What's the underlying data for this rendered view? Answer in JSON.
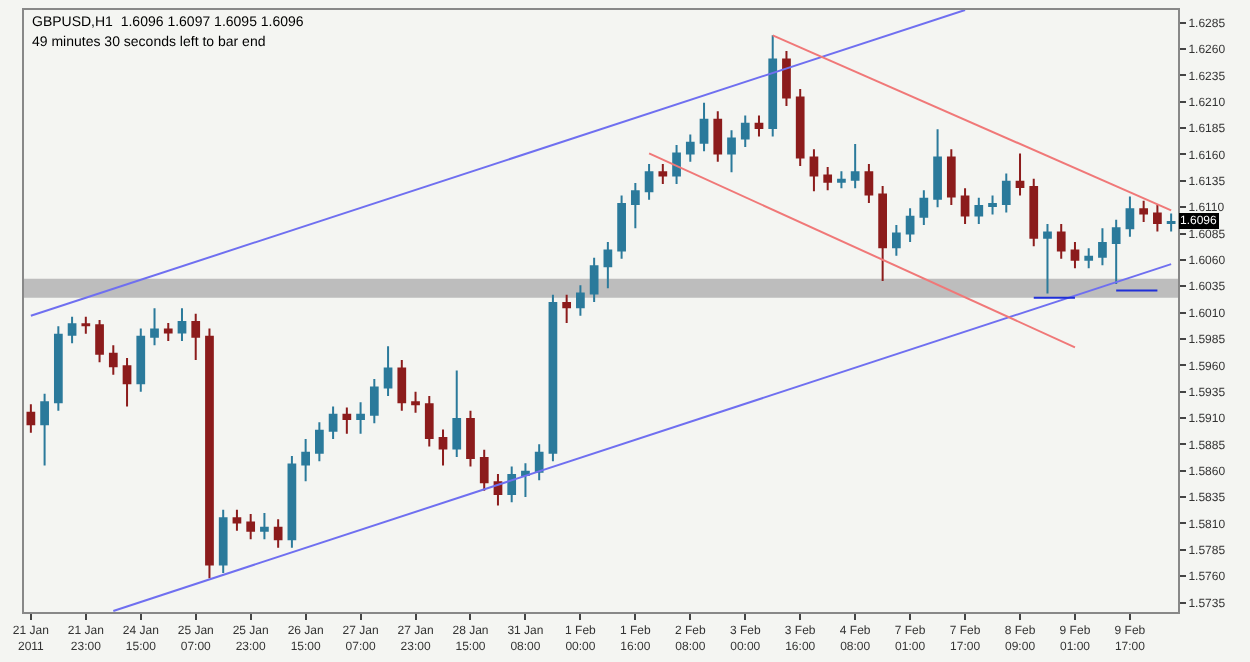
{
  "chart_data": {
    "type": "candlestick",
    "title": "GBPUSD,H1  1.6096 1.6097 1.6095 1.6096",
    "subtitle": "49 minutes 30 seconds left to bar end",
    "categories": [
      "21 Jan 2011",
      null,
      null,
      null,
      "21 Jan 23:00",
      null,
      null,
      null,
      "24 Jan 15:00",
      null,
      null,
      null,
      "25 Jan 07:00",
      null,
      null,
      null,
      "25 Jan 23:00",
      null,
      null,
      null,
      "26 Jan 15:00",
      null,
      null,
      null,
      "27 Jan 07:00",
      null,
      null,
      null,
      "27 Jan 23:00",
      null,
      null,
      null,
      "28 Jan 15:00",
      null,
      null,
      null,
      "31 Jan 08:00",
      null,
      null,
      null,
      "1 Feb 00:00",
      null,
      null,
      null,
      "1 Feb 16:00",
      null,
      null,
      null,
      "2 Feb 08:00",
      null,
      null,
      null,
      "3 Feb 00:00",
      null,
      null,
      null,
      "3 Feb 16:00",
      null,
      null,
      null,
      "4 Feb 08:00",
      null,
      null,
      null,
      "7 Feb 01:00",
      null,
      null,
      null,
      "7 Feb 17:00",
      null,
      null,
      null,
      "8 Feb 09:00",
      null,
      null,
      null,
      "9 Feb 01:00",
      null,
      null,
      null,
      "9 Feb 17:00",
      null,
      null,
      null
    ],
    "ohlc": [
      [
        1.5915,
        1.5923,
        1.5896,
        1.5904
      ],
      [
        1.5904,
        1.5933,
        1.5865,
        1.5925
      ],
      [
        1.5925,
        1.5997,
        1.5917,
        1.5989
      ],
      [
        1.5989,
        1.6006,
        1.5981,
        1.5999
      ],
      [
        1.5999,
        1.6006,
        1.599,
        1.5998
      ],
      [
        1.5998,
        1.6003,
        1.5963,
        1.5971
      ],
      [
        1.5971,
        1.5979,
        1.5951,
        1.5959
      ],
      [
        1.5959,
        1.5967,
        1.5921,
        1.5943
      ],
      [
        1.5943,
        1.5995,
        1.5935,
        1.5987
      ],
      [
        1.5987,
        1.6014,
        1.5979,
        1.5994
      ],
      [
        1.5994,
        1.6,
        1.5983,
        1.5991
      ],
      [
        1.5991,
        1.6014,
        1.5983,
        1.6001
      ],
      [
        1.6001,
        1.6009,
        1.5965,
        1.5987
      ],
      [
        1.5987,
        1.5995,
        1.5758,
        1.5771
      ],
      [
        1.5771,
        1.5823,
        1.5763,
        1.5815
      ],
      [
        1.5815,
        1.5823,
        1.5803,
        1.5811
      ],
      [
        1.5811,
        1.5819,
        1.5795,
        1.5803
      ],
      [
        1.5803,
        1.582,
        1.5795,
        1.5806
      ],
      [
        1.5806,
        1.5814,
        1.5787,
        1.5795
      ],
      [
        1.5795,
        1.5874,
        1.5787,
        1.5866
      ],
      [
        1.5866,
        1.589,
        1.585,
        1.5877
      ],
      [
        1.5877,
        1.5906,
        1.5869,
        1.5898
      ],
      [
        1.5898,
        1.5921,
        1.589,
        1.5913
      ],
      [
        1.5913,
        1.592,
        1.5895,
        1.5909
      ],
      [
        1.5909,
        1.5925,
        1.5895,
        1.5913
      ],
      [
        1.5913,
        1.5947,
        1.5905,
        1.5939
      ],
      [
        1.5939,
        1.5978,
        1.5931,
        1.5957
      ],
      [
        1.5957,
        1.5965,
        1.5917,
        1.5925
      ],
      [
        1.5925,
        1.5935,
        1.5915,
        1.5923
      ],
      [
        1.5923,
        1.5931,
        1.5883,
        1.5891
      ],
      [
        1.5891,
        1.5899,
        1.5865,
        1.5881
      ],
      [
        1.5881,
        1.5955,
        1.5873,
        1.5909
      ],
      [
        1.5909,
        1.5917,
        1.5864,
        1.5872
      ],
      [
        1.5872,
        1.588,
        1.5841,
        1.5849
      ],
      [
        1.5849,
        1.5857,
        1.5827,
        1.5838
      ],
      [
        1.5838,
        1.5864,
        1.583,
        1.5856
      ],
      [
        1.5856,
        1.5867,
        1.5835,
        1.5859
      ],
      [
        1.5859,
        1.5885,
        1.5851,
        1.5877
      ],
      [
        1.5877,
        1.6027,
        1.5869,
        1.6019
      ],
      [
        1.6019,
        1.6027,
        1.6,
        1.6015
      ],
      [
        1.6015,
        1.6036,
        1.6007,
        1.6028
      ],
      [
        1.6028,
        1.6062,
        1.602,
        1.6054
      ],
      [
        1.6054,
        1.6077,
        1.6033,
        1.6069
      ],
      [
        1.6069,
        1.6121,
        1.6061,
        1.6113
      ],
      [
        1.6113,
        1.6133,
        1.609,
        1.6125
      ],
      [
        1.6125,
        1.6151,
        1.6117,
        1.6143
      ],
      [
        1.6143,
        1.6151,
        1.6132,
        1.614
      ],
      [
        1.614,
        1.6169,
        1.6132,
        1.6161
      ],
      [
        1.6161,
        1.6179,
        1.6153,
        1.6171
      ],
      [
        1.6171,
        1.6209,
        1.6163,
        1.6193
      ],
      [
        1.6193,
        1.6201,
        1.6153,
        1.6161
      ],
      [
        1.6161,
        1.6183,
        1.6143,
        1.6175
      ],
      [
        1.6175,
        1.6197,
        1.6167,
        1.6189
      ],
      [
        1.6189,
        1.6197,
        1.6177,
        1.6185
      ],
      [
        1.6185,
        1.6273,
        1.6177,
        1.625
      ],
      [
        1.625,
        1.6258,
        1.6206,
        1.6214
      ],
      [
        1.6214,
        1.6222,
        1.6149,
        1.6157
      ],
      [
        1.6157,
        1.6165,
        1.6125,
        1.614
      ],
      [
        1.614,
        1.6148,
        1.6126,
        1.6134
      ],
      [
        1.6134,
        1.6144,
        1.6128,
        1.6136
      ],
      [
        1.6136,
        1.617,
        1.6128,
        1.6143
      ],
      [
        1.6143,
        1.6151,
        1.6114,
        1.6122
      ],
      [
        1.6122,
        1.613,
        1.604,
        1.6072
      ],
      [
        1.6072,
        1.6093,
        1.6064,
        1.6085
      ],
      [
        1.6085,
        1.6109,
        1.6077,
        1.6101
      ],
      [
        1.6101,
        1.6126,
        1.6093,
        1.6118
      ],
      [
        1.6118,
        1.6184,
        1.611,
        1.6157
      ],
      [
        1.6157,
        1.6165,
        1.6112,
        1.612
      ],
      [
        1.612,
        1.6128,
        1.6094,
        1.6102
      ],
      [
        1.6102,
        1.6119,
        1.6094,
        1.6111
      ],
      [
        1.6111,
        1.6121,
        1.6103,
        1.6113
      ],
      [
        1.6113,
        1.6142,
        1.6105,
        1.6134
      ],
      [
        1.6134,
        1.6161,
        1.6121,
        1.6129
      ],
      [
        1.6129,
        1.6137,
        1.6073,
        1.6081
      ],
      [
        1.6081,
        1.6094,
        1.6028,
        1.6086
      ],
      [
        1.6086,
        1.6094,
        1.6061,
        1.6069
      ],
      [
        1.6069,
        1.6077,
        1.6052,
        1.606
      ],
      [
        1.606,
        1.6071,
        1.6052,
        1.6063
      ],
      [
        1.6063,
        1.609,
        1.6055,
        1.6076
      ],
      [
        1.6076,
        1.6098,
        1.6037,
        1.609
      ],
      [
        1.609,
        1.612,
        1.6082,
        1.6108
      ],
      [
        1.6108,
        1.6116,
        1.6096,
        1.6104
      ],
      [
        1.6104,
        1.6112,
        1.6087,
        1.6095
      ],
      [
        1.6095,
        1.6104,
        1.6087,
        1.6096
      ]
    ],
    "colors": [
      "#8c1c1c",
      "#2b7a9b",
      "#2b7a9b",
      "#2b7a9b",
      "#8c1c1c",
      "#8c1c1c",
      "#8c1c1c",
      "#8c1c1c",
      "#2b7a9b",
      "#2b7a9b",
      "#8c1c1c",
      "#2b7a9b",
      "#8c1c1c",
      "#8c1c1c",
      "#2b7a9b",
      "#8c1c1c",
      "#8c1c1c",
      "#2b7a9b",
      "#8c1c1c",
      "#2b7a9b",
      "#2b7a9b",
      "#2b7a9b",
      "#2b7a9b",
      "#8c1c1c",
      "#2b7a9b",
      "#2b7a9b",
      "#2b7a9b",
      "#8c1c1c",
      "#8c1c1c",
      "#8c1c1c",
      "#8c1c1c",
      "#2b7a9b",
      "#8c1c1c",
      "#8c1c1c",
      "#8c1c1c",
      "#2b7a9b",
      "#2b7a9b",
      "#2b7a9b",
      "#2b7a9b",
      "#8c1c1c",
      "#2b7a9b",
      "#2b7a9b",
      "#2b7a9b",
      "#2b7a9b",
      "#2b7a9b",
      "#2b7a9b",
      "#8c1c1c",
      "#2b7a9b",
      "#2b7a9b",
      "#2b7a9b",
      "#8c1c1c",
      "#2b7a9b",
      "#2b7a9b",
      "#8c1c1c",
      "#2b7a9b",
      "#8c1c1c",
      "#8c1c1c",
      "#8c1c1c",
      "#8c1c1c",
      "#2b7a9b",
      "#2b7a9b",
      "#8c1c1c",
      "#8c1c1c",
      "#2b7a9b",
      "#2b7a9b",
      "#2b7a9b",
      "#2b7a9b",
      "#8c1c1c",
      "#8c1c1c",
      "#2b7a9b",
      "#2b7a9b",
      "#2b7a9b",
      "#8c1c1c",
      "#8c1c1c",
      "#2b7a9b",
      "#8c1c1c",
      "#8c1c1c",
      "#2b7a9b",
      "#2b7a9b",
      "#2b7a9b",
      "#2b7a9b",
      "#8c1c1c",
      "#8c1c1c",
      "#2b7a9b"
    ],
    "series": [
      {
        "type": "line",
        "color": "#6f6ff0",
        "values": [
          1.6007,
          null,
          null,
          null,
          null,
          null,
          null,
          null,
          null,
          null,
          null,
          null,
          null,
          null,
          null,
          null,
          null,
          null,
          null,
          null,
          null,
          null,
          null,
          null,
          null,
          null,
          null,
          null,
          null,
          null,
          null,
          null,
          null,
          null,
          null,
          null,
          null,
          null,
          null,
          null,
          null,
          null,
          null,
          null,
          null,
          null,
          null,
          null,
          null,
          null,
          null,
          null,
          null,
          null,
          null,
          null,
          null,
          null,
          null,
          null,
          null,
          null,
          null,
          null,
          null,
          null,
          null,
          null,
          1.6297,
          null,
          null,
          null,
          null,
          null,
          null,
          null,
          null,
          null,
          null,
          null,
          null,
          null,
          null,
          null
        ]
      },
      {
        "type": "line",
        "color": "#6f6ff0",
        "values": [
          null,
          null,
          null,
          null,
          null,
          null,
          1.5727,
          null,
          null,
          null,
          null,
          null,
          null,
          null,
          null,
          null,
          null,
          null,
          null,
          null,
          null,
          null,
          null,
          null,
          null,
          null,
          null,
          null,
          null,
          null,
          null,
          null,
          null,
          null,
          null,
          null,
          null,
          null,
          null,
          null,
          null,
          null,
          null,
          null,
          null,
          null,
          null,
          null,
          null,
          null,
          null,
          null,
          null,
          null,
          null,
          null,
          null,
          null,
          null,
          null,
          null,
          null,
          null,
          null,
          null,
          null,
          null,
          null,
          null,
          null,
          null,
          null,
          null,
          null,
          null,
          null,
          null,
          null,
          null,
          null,
          null,
          null,
          null,
          1.6056
        ]
      },
      {
        "type": "line",
        "color": "#f07878",
        "values": [
          null,
          null,
          null,
          null,
          null,
          null,
          null,
          null,
          null,
          null,
          null,
          null,
          null,
          null,
          null,
          null,
          null,
          null,
          null,
          null,
          null,
          null,
          null,
          null,
          null,
          null,
          null,
          null,
          null,
          null,
          null,
          null,
          null,
          null,
          null,
          null,
          null,
          null,
          null,
          null,
          null,
          null,
          null,
          null,
          null,
          null,
          null,
          null,
          null,
          null,
          null,
          null,
          null,
          null,
          1.6273,
          null,
          null,
          null,
          null,
          null,
          null,
          null,
          null,
          null,
          null,
          null,
          null,
          null,
          null,
          null,
          null,
          null,
          null,
          null,
          null,
          null,
          null,
          null,
          null,
          null,
          null,
          null,
          null,
          1.6107
        ]
      },
      {
        "type": "line",
        "color": "#f07878",
        "values": [
          null,
          null,
          null,
          null,
          null,
          null,
          null,
          null,
          null,
          null,
          null,
          null,
          null,
          null,
          null,
          null,
          null,
          null,
          null,
          null,
          null,
          null,
          null,
          null,
          null,
          null,
          null,
          null,
          null,
          null,
          null,
          null,
          null,
          null,
          null,
          null,
          null,
          null,
          null,
          null,
          null,
          null,
          null,
          null,
          null,
          1.6161,
          null,
          null,
          null,
          null,
          null,
          null,
          null,
          null,
          null,
          null,
          null,
          null,
          null,
          null,
          null,
          null,
          null,
          null,
          null,
          null,
          null,
          null,
          null,
          null,
          null,
          null,
          null,
          null,
          null,
          null,
          1.5977,
          null,
          null,
          null,
          null,
          null,
          null,
          null
        ]
      },
      {
        "type": "line",
        "color": "#1f2fd8",
        "values": [
          null,
          null,
          null,
          null,
          null,
          null,
          null,
          null,
          null,
          null,
          null,
          null,
          null,
          null,
          null,
          null,
          null,
          null,
          null,
          null,
          null,
          null,
          null,
          null,
          null,
          null,
          null,
          null,
          null,
          null,
          null,
          null,
          null,
          null,
          null,
          null,
          null,
          null,
          null,
          null,
          null,
          null,
          null,
          null,
          null,
          null,
          null,
          null,
          null,
          null,
          null,
          null,
          null,
          null,
          null,
          null,
          null,
          null,
          null,
          null,
          null,
          null,
          null,
          null,
          null,
          null,
          null,
          null,
          null,
          null,
          null,
          null,
          null,
          1.6024,
          null,
          null,
          1.6024,
          null,
          null,
          null,
          null,
          null,
          null,
          null
        ]
      },
      {
        "type": "line",
        "color": "#1f2fd8",
        "values": [
          null,
          null,
          null,
          null,
          null,
          null,
          null,
          null,
          null,
          null,
          null,
          null,
          null,
          null,
          null,
          null,
          null,
          null,
          null,
          null,
          null,
          null,
          null,
          null,
          null,
          null,
          null,
          null,
          null,
          null,
          null,
          null,
          null,
          null,
          null,
          null,
          null,
          null,
          null,
          null,
          null,
          null,
          null,
          null,
          null,
          null,
          null,
          null,
          null,
          null,
          null,
          null,
          null,
          null,
          null,
          null,
          null,
          null,
          null,
          null,
          null,
          null,
          null,
          null,
          null,
          null,
          null,
          null,
          null,
          null,
          null,
          null,
          null,
          null,
          null,
          null,
          null,
          null,
          null,
          1.6031,
          null,
          null,
          1.6031,
          null
        ]
      }
    ],
    "bands": [
      {
        "axis": "y",
        "from": 1.6024,
        "to": 1.6042,
        "color": "#bdbdbd"
      }
    ],
    "annotations": [
      {
        "text": "1.6096",
        "y": 1.6096
      }
    ],
    "ylim": [
      1.5726,
      1.6297
    ],
    "yticks": [
      1.6285,
      {
        "value": 1.626,
        "label": "1.6260"
      },
      1.6235,
      {
        "value": 1.621,
        "label": "1.6210"
      },
      1.6185,
      {
        "value": 1.616,
        "label": "1.6160"
      },
      1.6135,
      {
        "value": 1.611,
        "label": "1.6110"
      },
      1.6085,
      {
        "value": 1.606,
        "label": "1.6060"
      },
      1.6035,
      {
        "value": 1.601,
        "label": "1.6010"
      },
      1.5985,
      {
        "value": 1.596,
        "label": "1.5960"
      },
      1.5935,
      {
        "value": 1.591,
        "label": "1.5910"
      },
      1.5885,
      {
        "value": 1.586,
        "label": "1.5860"
      },
      1.5835,
      {
        "value": 1.581,
        "label": "1.5810"
      },
      1.5785,
      {
        "value": 1.576,
        "label": "1.5760"
      },
      1.5735
    ],
    "grid": false
  }
}
